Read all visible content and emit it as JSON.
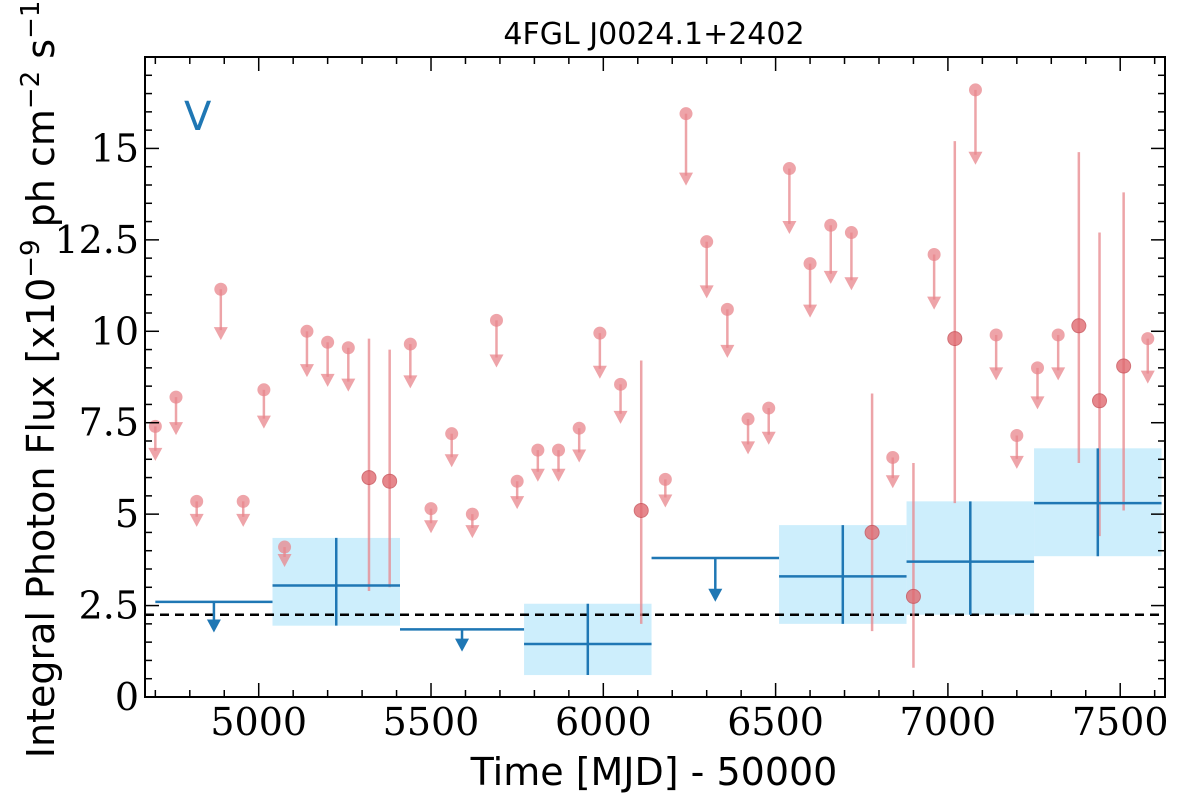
{
  "chart_data": {
    "type": "scatter",
    "title": "4FGL J0024.1+2402",
    "xlabel": "Time [MJD] - 50000",
    "ylabel_parts": {
      "prefix": "Integral Photon Flux [x10",
      "exp1": "−9",
      "mid": " ph cm",
      "exp2": "−2",
      "mid2": " s",
      "exp3": "−1",
      "suffix": "]"
    },
    "annotation": "V",
    "xlim": [
      4670,
      7630
    ],
    "ylim": [
      0,
      17.5
    ],
    "xticks": [
      5000,
      5500,
      6000,
      6500,
      7000,
      7500
    ],
    "xtick_labels": [
      "5000",
      "5500",
      "6000",
      "6500",
      "7000",
      "7500"
    ],
    "yticks": [
      0,
      2.5,
      5,
      7.5,
      10,
      12.5,
      15
    ],
    "ytick_labels": [
      "0",
      "2.5",
      "5",
      "7.5",
      "10",
      "12.5",
      "15"
    ],
    "reference_line_y": 2.25,
    "colors": {
      "short_bins": "#e8868c",
      "long_bins": "#1f77b4",
      "band_fill": "#cdeefc",
      "reference_line": "#000000"
    },
    "short_bin_upper_limits": [
      {
        "x": 4700,
        "y": 7.4
      },
      {
        "x": 4760,
        "y": 8.2
      },
      {
        "x": 4820,
        "y": 5.35
      },
      {
        "x": 4890,
        "y": 11.15
      },
      {
        "x": 4955,
        "y": 5.35
      },
      {
        "x": 5015,
        "y": 8.4
      },
      {
        "x": 5075,
        "y": 4.1
      },
      {
        "x": 5140,
        "y": 10.0
      },
      {
        "x": 5200,
        "y": 9.7
      },
      {
        "x": 5260,
        "y": 9.55
      },
      {
        "x": 5440,
        "y": 9.65
      },
      {
        "x": 5500,
        "y": 5.15
      },
      {
        "x": 5560,
        "y": 7.2
      },
      {
        "x": 5620,
        "y": 5.0
      },
      {
        "x": 5690,
        "y": 10.3
      },
      {
        "x": 5750,
        "y": 5.9
      },
      {
        "x": 5810,
        "y": 6.75
      },
      {
        "x": 5870,
        "y": 6.75
      },
      {
        "x": 5930,
        "y": 7.35
      },
      {
        "x": 5990,
        "y": 9.95
      },
      {
        "x": 6050,
        "y": 8.55
      },
      {
        "x": 6180,
        "y": 5.95
      },
      {
        "x": 6240,
        "y": 15.95
      },
      {
        "x": 6300,
        "y": 12.45
      },
      {
        "x": 6360,
        "y": 10.6
      },
      {
        "x": 6420,
        "y": 7.6
      },
      {
        "x": 6480,
        "y": 7.9
      },
      {
        "x": 6540,
        "y": 14.45
      },
      {
        "x": 6600,
        "y": 11.85
      },
      {
        "x": 6660,
        "y": 12.9
      },
      {
        "x": 6720,
        "y": 12.7
      },
      {
        "x": 6840,
        "y": 6.55
      },
      {
        "x": 6960,
        "y": 12.1
      },
      {
        "x": 7080,
        "y": 16.6
      },
      {
        "x": 7140,
        "y": 9.9
      },
      {
        "x": 7200,
        "y": 7.15
      },
      {
        "x": 7260,
        "y": 9.0
      },
      {
        "x": 7320,
        "y": 9.9
      },
      {
        "x": 7580,
        "y": 9.8
      }
    ],
    "short_bin_detections": [
      {
        "x": 5320,
        "y": 6.0,
        "lo": 2.9,
        "hi": 9.8
      },
      {
        "x": 5380,
        "y": 5.9,
        "lo": 3.0,
        "hi": 9.5
      },
      {
        "x": 6110,
        "y": 5.1,
        "lo": 2.0,
        "hi": 9.2
      },
      {
        "x": 6780,
        "y": 4.5,
        "lo": 1.8,
        "hi": 8.3
      },
      {
        "x": 6900,
        "y": 2.75,
        "lo": 0.8,
        "hi": 6.4
      },
      {
        "x": 7020,
        "y": 9.8,
        "lo": 5.3,
        "hi": 15.2
      },
      {
        "x": 7380,
        "y": 10.15,
        "lo": 6.4,
        "hi": 14.9
      },
      {
        "x": 7440,
        "y": 8.1,
        "lo": 4.4,
        "hi": 12.7
      },
      {
        "x": 7510,
        "y": 9.05,
        "lo": 5.1,
        "hi": 13.8
      }
    ],
    "long_bin_upper_limits": [
      {
        "x0": 4700,
        "x1": 5040,
        "y": 2.6
      },
      {
        "x0": 5410,
        "x1": 5770,
        "y": 1.85
      },
      {
        "x0": 6140,
        "x1": 6510,
        "y": 3.8
      }
    ],
    "long_bin_detections": [
      {
        "x0": 5040,
        "x1": 5410,
        "y": 3.05,
        "lo": 1.95,
        "hi": 4.35
      },
      {
        "x0": 5770,
        "x1": 6140,
        "y": 1.45,
        "lo": 0.6,
        "hi": 2.55
      },
      {
        "x0": 6510,
        "x1": 6880,
        "y": 3.3,
        "lo": 2.0,
        "hi": 4.7
      },
      {
        "x0": 6880,
        "x1": 7250,
        "y": 3.7,
        "lo": 2.25,
        "hi": 5.35
      },
      {
        "x0": 7250,
        "x1": 7620,
        "y": 5.3,
        "lo": 3.85,
        "hi": 6.8
      }
    ]
  }
}
